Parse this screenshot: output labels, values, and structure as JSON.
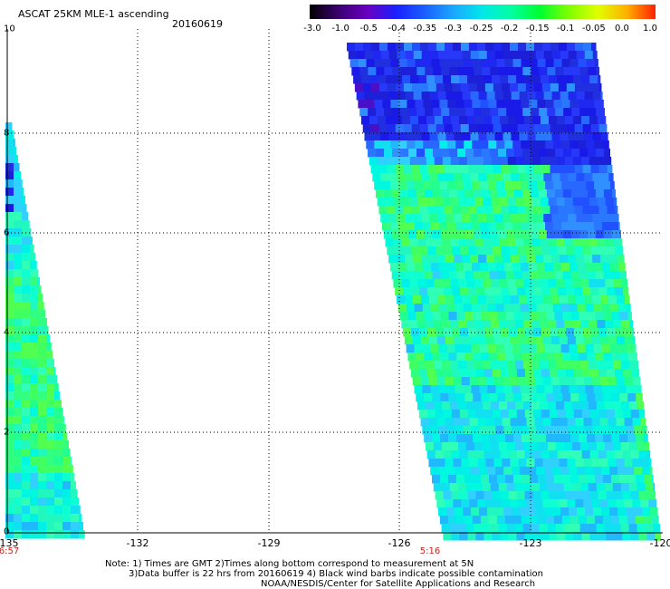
{
  "header": {
    "title": "ASCAT 25KM MLE-1 ascending",
    "date": "20160619"
  },
  "colorbar": {
    "labels": [
      "-3.0",
      "-1.0",
      "-0.5",
      "-0.4",
      "-0.35",
      "-0.3",
      "-0.25",
      "-0.2",
      "-0.15",
      "-0.1",
      "-0.05",
      "0.0",
      "1.0"
    ],
    "colors": [
      "#000000",
      "#3a0070",
      "#6a00c0",
      "#1a20ff",
      "#1a60ff",
      "#1aa8ff",
      "#00e8e8",
      "#00ffa0",
      "#00ff30",
      "#80ff00",
      "#e0ff00",
      "#ffb000",
      "#ff2000"
    ]
  },
  "axes": {
    "x_ticks": [
      "-135",
      "-132",
      "-129",
      "-126",
      "-123",
      "-120"
    ],
    "y_ticks": [
      "0",
      "2",
      "4",
      "6",
      "8",
      "10"
    ]
  },
  "swath_times": [
    {
      "label": "6:57",
      "lon": "-135"
    },
    {
      "label": "5:16",
      "lon": "-126"
    }
  ],
  "notes": {
    "line1": "Note: 1) Times are GMT 2)Times along bottom correspond to measurement at 5N",
    "line2": "3)Data buffer is 22 hrs from 20160619 4) Black wind barbs indicate possible contamination",
    "line3": "NOAA/NESDIS/Center for Satellite Applications and Research"
  },
  "map_data": {
    "lon_range": [
      -135,
      -120
    ],
    "lat_range": [
      0,
      10
    ],
    "swaths": [
      {
        "name": "west",
        "dominant_values": [
          "-0.2",
          "-0.25",
          "-0.3",
          "-0.4"
        ]
      },
      {
        "name": "east",
        "dominant_values": [
          "-0.4",
          "-0.35",
          "-0.3",
          "-0.25",
          "-0.2"
        ]
      }
    ]
  }
}
